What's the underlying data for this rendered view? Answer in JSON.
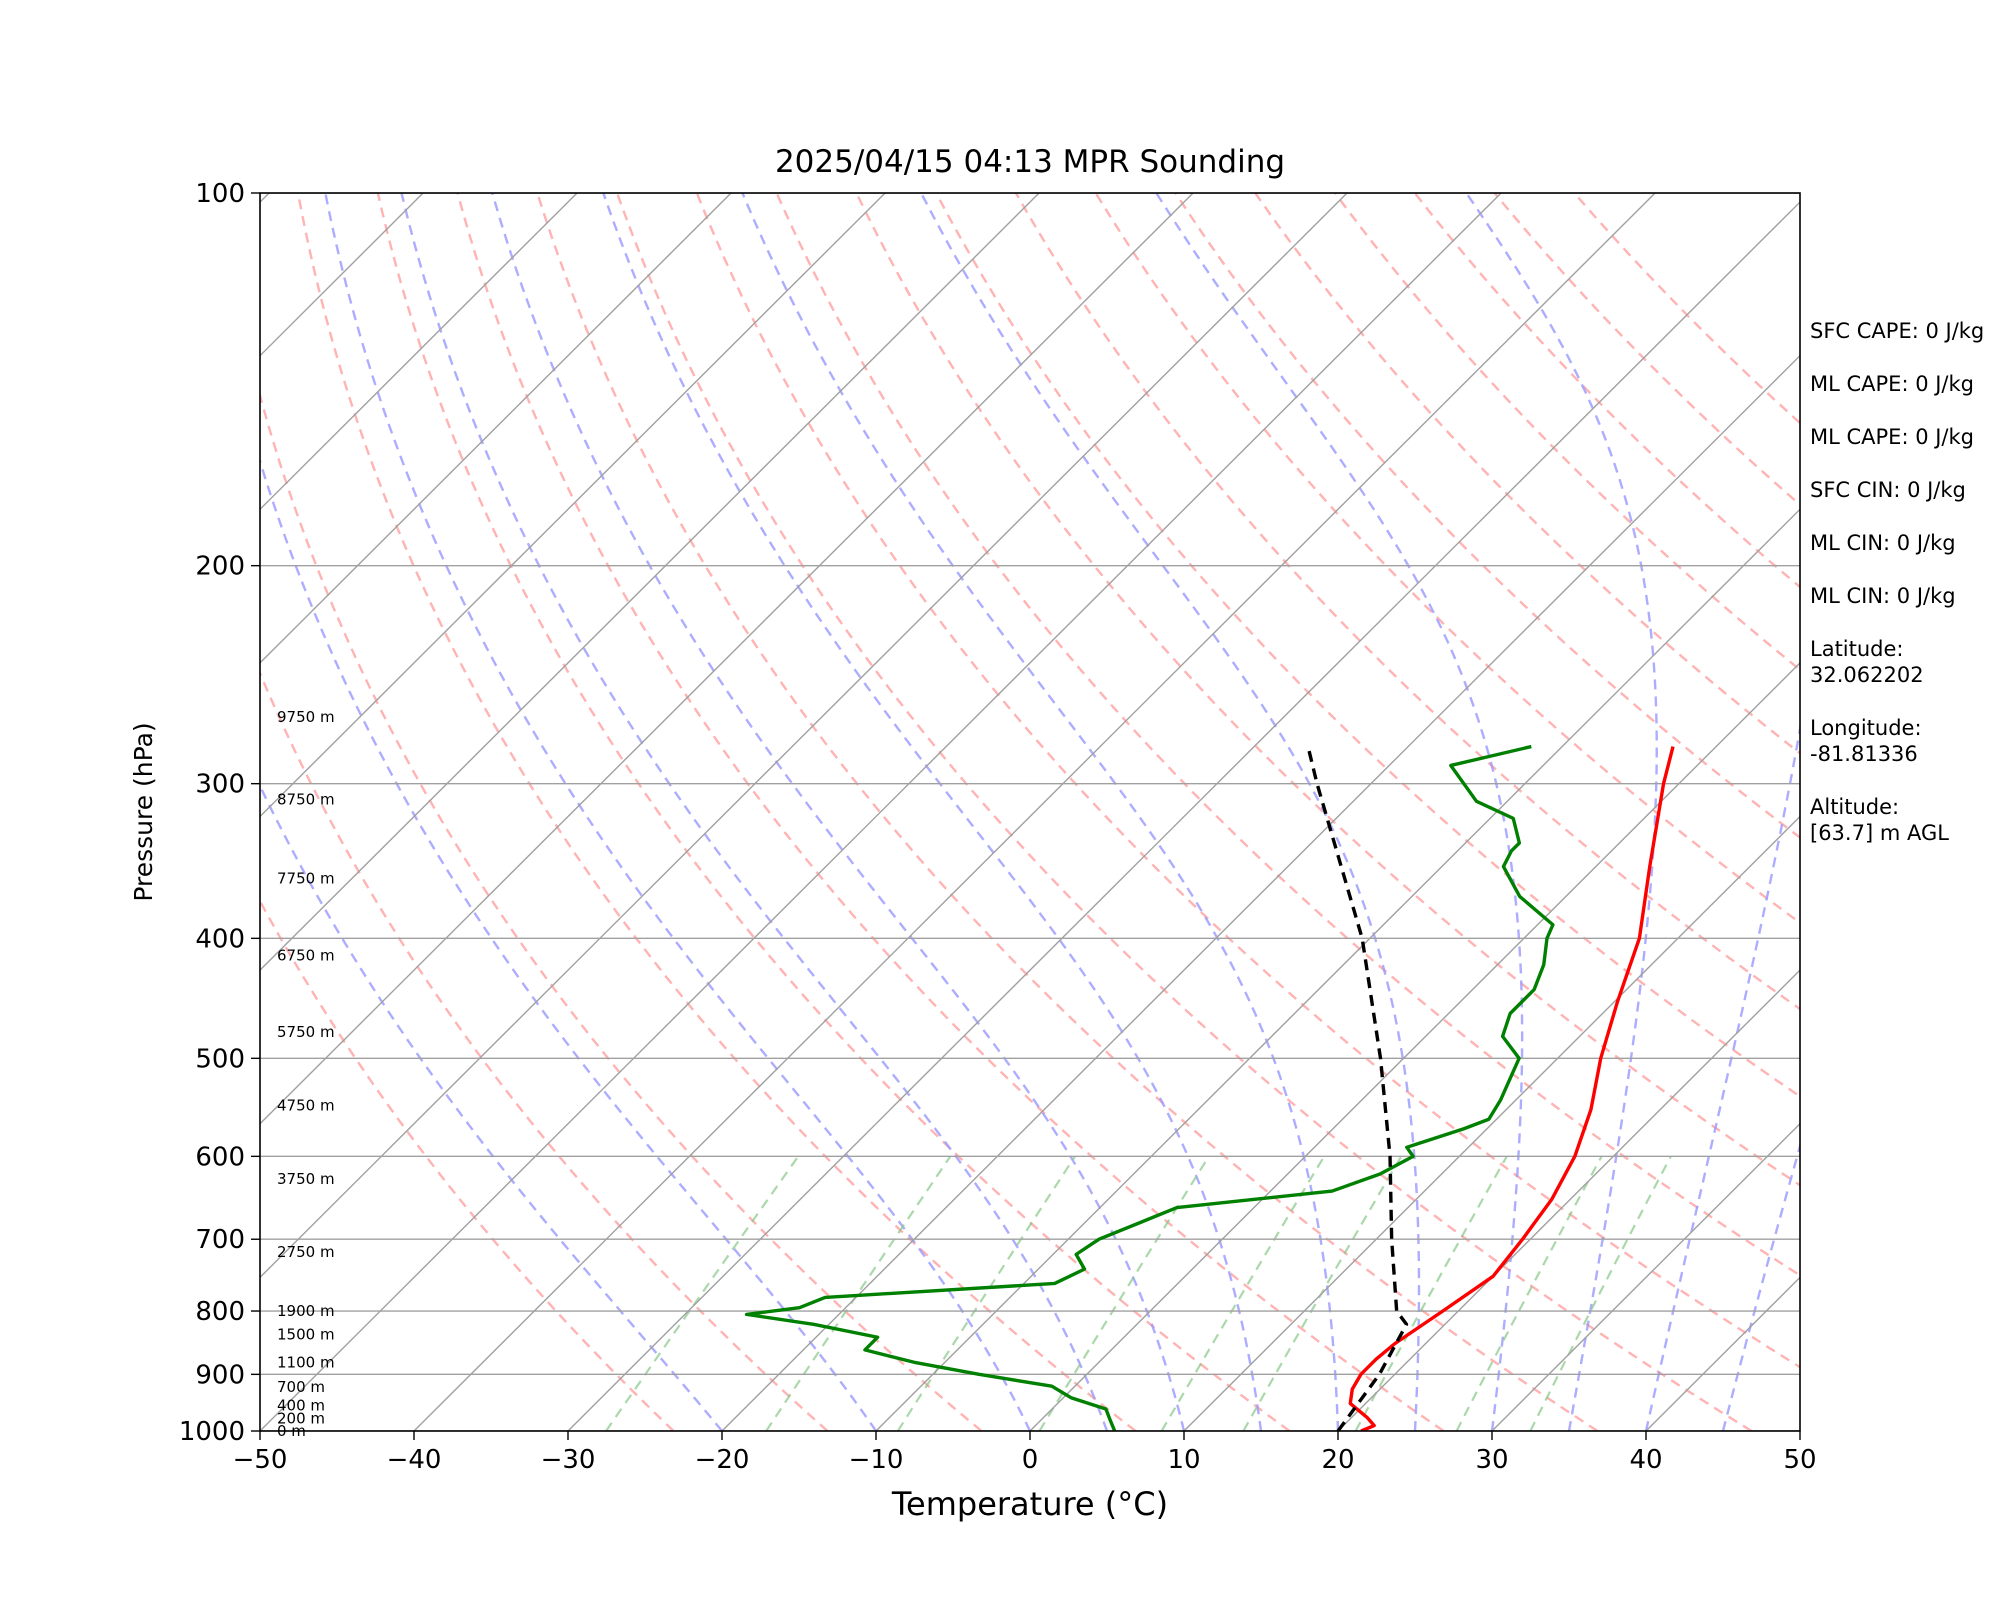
{
  "chart_data": {
    "type": "line",
    "title": "2025/04/15 04:13 MPR Sounding",
    "xlabel": "Temperature (°C)",
    "ylabel": "Pressure (hPa)",
    "xlim": [
      -50,
      50
    ],
    "ylim": [
      1000,
      100
    ],
    "y_scale": "log",
    "x_ticks": [
      "−50",
      "−40",
      "−30",
      "−20",
      "−10",
      "0",
      "10",
      "20",
      "30",
      "40",
      "50"
    ],
    "y_ticks": [
      "100",
      "200",
      "300",
      "400",
      "500",
      "600",
      "700",
      "800",
      "900",
      "1000"
    ],
    "grid": true,
    "skew_factor": 35,
    "series": [
      {
        "role": "temperature",
        "color": "#ff0000",
        "points": [
          [
            1000,
            21.5
          ],
          [
            990,
            22.0
          ],
          [
            975,
            21.0
          ],
          [
            950,
            19.0
          ],
          [
            925,
            18.2
          ],
          [
            900,
            17.8
          ],
          [
            875,
            17.8
          ],
          [
            850,
            18.0
          ],
          [
            800,
            19.0
          ],
          [
            750,
            20.0
          ],
          [
            700,
            19.5
          ],
          [
            650,
            18.8
          ],
          [
            600,
            17.5
          ],
          [
            550,
            15.5
          ],
          [
            500,
            12.8
          ],
          [
            450,
            10.2
          ],
          [
            400,
            7.5
          ],
          [
            350,
            3.5
          ],
          [
            300,
            -1.0
          ],
          [
            280,
            -2.8
          ]
        ]
      },
      {
        "role": "dewpoint",
        "color": "#008000",
        "points": [
          [
            1000,
            5.5
          ],
          [
            980,
            4.5
          ],
          [
            960,
            3.5
          ],
          [
            940,
            0.5
          ],
          [
            920,
            -1.5
          ],
          [
            900,
            -7.0
          ],
          [
            880,
            -12.0
          ],
          [
            860,
            -16.0
          ],
          [
            855,
            -16.0
          ],
          [
            840,
            -16.0
          ],
          [
            820,
            -21.0
          ],
          [
            805,
            -26.0
          ],
          [
            795,
            -23.0
          ],
          [
            780,
            -22.0
          ],
          [
            760,
            -8.0
          ],
          [
            740,
            -7.0
          ],
          [
            720,
            -8.5
          ],
          [
            700,
            -8.0
          ],
          [
            660,
            -5.0
          ],
          [
            640,
            4.0
          ],
          [
            620,
            6.0
          ],
          [
            600,
            7.0
          ],
          [
            590,
            6.0
          ],
          [
            570,
            8.5
          ],
          [
            560,
            9.5
          ],
          [
            540,
            9.0
          ],
          [
            500,
            7.5
          ],
          [
            480,
            5.0
          ],
          [
            460,
            4.0
          ],
          [
            440,
            4.0
          ],
          [
            420,
            3.0
          ],
          [
            400,
            1.5
          ],
          [
            390,
            1.0
          ],
          [
            370,
            -3.0
          ],
          [
            350,
            -6.0
          ],
          [
            340,
            -6.5
          ],
          [
            335,
            -6.5
          ],
          [
            320,
            -8.5
          ],
          [
            310,
            -12.0
          ],
          [
            290,
            -16.0
          ],
          [
            280,
            -12.0
          ]
        ]
      },
      {
        "role": "parcel",
        "color": "#000000",
        "dashed": true,
        "points": [
          [
            1000,
            20.0
          ],
          [
            900,
            19.0
          ],
          [
            820,
            17.5
          ],
          [
            800,
            16.0
          ],
          [
            700,
            11.0
          ],
          [
            600,
            5.5
          ],
          [
            500,
            -1.5
          ],
          [
            400,
            -10.5
          ],
          [
            300,
            -23.5
          ],
          [
            280,
            -26.5
          ]
        ]
      }
    ],
    "reference_lines": {
      "dry_adiabats_theta_k": [
        250,
        260,
        270,
        280,
        290,
        300,
        310,
        320,
        330,
        340,
        350,
        360,
        370,
        380,
        390,
        400,
        410,
        420,
        430,
        440
      ],
      "moist_adiabats_start_c": [
        -20,
        -10,
        0,
        5,
        10,
        15,
        20,
        25,
        30,
        35,
        40,
        45
      ],
      "mixing_ratio_g_kg": [
        0.4,
        1,
        2,
        4,
        7,
        10,
        16,
        24,
        32
      ],
      "dry_adiabat_color": "#ff9999",
      "moist_adiabat_color": "#9999ff",
      "mixing_ratio_color": "#88c888",
      "isotherm_color": "#a0a0a0"
    },
    "height_labels": [
      {
        "p": 1000,
        "text": "0 m"
      },
      {
        "p": 977,
        "text": "200 m"
      },
      {
        "p": 954,
        "text": "400 m"
      },
      {
        "p": 921,
        "text": "700 m"
      },
      {
        "p": 880,
        "text": "1100 m"
      },
      {
        "p": 836,
        "text": "1500 m"
      },
      {
        "p": 800,
        "text": "1900 m"
      },
      {
        "p": 717,
        "text": "2750 m"
      },
      {
        "p": 626,
        "text": "3750 m"
      },
      {
        "p": 546,
        "text": "4750 m"
      },
      {
        "p": 476,
        "text": "5750 m"
      },
      {
        "p": 413,
        "text": "6750 m"
      },
      {
        "p": 358,
        "text": "7750 m"
      },
      {
        "p": 309,
        "text": "8750 m"
      },
      {
        "p": 265,
        "text": "9750 m"
      }
    ]
  },
  "side_info": [
    "SFC CAPE: 0 J/kg",
    "ML CAPE: 0 J/kg",
    "ML CAPE: 0 J/kg",
    "SFC CIN: 0 J/kg",
    "ML CIN: 0 J/kg",
    "ML CIN: 0 J/kg",
    "Latitude:\n32.062202",
    "Longitude:\n-81.81336",
    "Altitude:\n[63.7] m AGL"
  ]
}
